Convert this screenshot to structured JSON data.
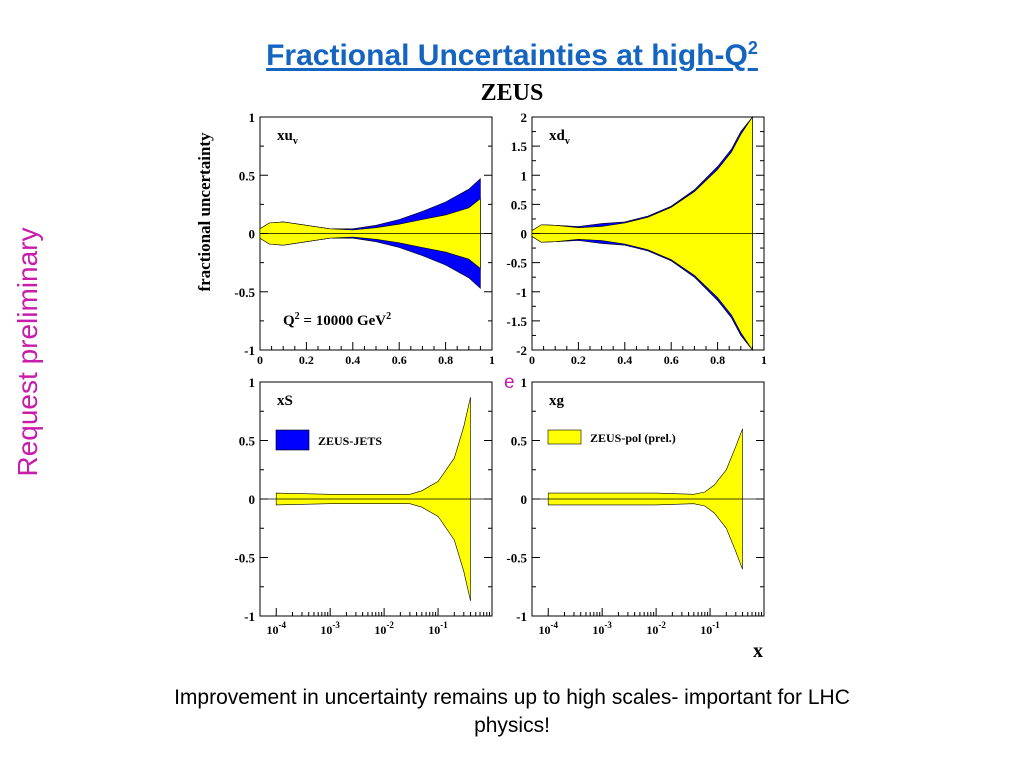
{
  "slide": {
    "title": "Fractional Uncertainties at high-Q",
    "title_superscript": "2",
    "zeus_label": "ZEUS",
    "side_note": "Request preliminary",
    "stray_char": "e",
    "caption_line1": "Improvement in uncertainty remains up to high scales- important for LHC",
    "caption_line2": "physics!",
    "x_axis_common_label": "x",
    "y_axis_common_label": "fractional uncertainty"
  },
  "colors": {
    "title": "#1565c0",
    "side_note": "#c81cab",
    "zeus_pol_band": "#ffff00",
    "zeus_jets_band": "#0000ff",
    "outline": "#000000"
  },
  "chart_data": [
    {
      "type": "area",
      "panel_label": "xu",
      "panel_label_sub": "v",
      "annotation": "Q",
      "annotation_parts": [
        "Q",
        "2",
        " = 10000 GeV",
        "2"
      ],
      "x_scale": "linear",
      "xlim": [
        0,
        1
      ],
      "ylim": [
        -1,
        1
      ],
      "x_ticks": [
        "0",
        "0.2",
        "0.4",
        "0.6",
        "0.8",
        "1"
      ],
      "y_ticks": [
        "-1",
        "-0.5",
        "0",
        "0.5",
        "1"
      ],
      "x": [
        0.0,
        0.04,
        0.1,
        0.2,
        0.3,
        0.4,
        0.5,
        0.6,
        0.7,
        0.8,
        0.9,
        0.95
      ],
      "series": [
        {
          "name": "ZEUS-JETS",
          "upper": [
            0.04,
            0.09,
            0.1,
            0.07,
            0.04,
            0.04,
            0.07,
            0.12,
            0.19,
            0.27,
            0.38,
            0.47
          ],
          "lower": [
            -0.04,
            -0.09,
            -0.1,
            -0.07,
            -0.04,
            -0.04,
            -0.07,
            -0.12,
            -0.19,
            -0.27,
            -0.38,
            -0.47
          ]
        },
        {
          "name": "ZEUS-pol (prel.)",
          "upper": [
            0.04,
            0.09,
            0.1,
            0.07,
            0.04,
            0.03,
            0.05,
            0.08,
            0.12,
            0.16,
            0.22,
            0.3
          ],
          "lower": [
            -0.04,
            -0.09,
            -0.1,
            -0.07,
            -0.04,
            -0.03,
            -0.05,
            -0.08,
            -0.12,
            -0.16,
            -0.22,
            -0.3
          ]
        }
      ]
    },
    {
      "type": "area",
      "panel_label": "xd",
      "panel_label_sub": "v",
      "x_scale": "linear",
      "xlim": [
        0,
        1
      ],
      "ylim": [
        -2,
        2
      ],
      "x_ticks": [
        "0",
        "0.2",
        "0.4",
        "0.6",
        "0.8",
        "1"
      ],
      "y_ticks": [
        "-2",
        "-1.5",
        "-1",
        "-0.5",
        "0",
        "0.5",
        "1",
        "1.5",
        "2"
      ],
      "x": [
        0.0,
        0.04,
        0.1,
        0.2,
        0.3,
        0.4,
        0.5,
        0.6,
        0.7,
        0.8,
        0.86,
        0.9,
        0.95
      ],
      "series": [
        {
          "name": "ZEUS-JETS",
          "upper": [
            0.05,
            0.15,
            0.14,
            0.12,
            0.17,
            0.2,
            0.3,
            0.47,
            0.75,
            1.15,
            1.45,
            1.75,
            2.0
          ],
          "lower": [
            -0.05,
            -0.15,
            -0.14,
            -0.12,
            -0.17,
            -0.2,
            -0.3,
            -0.47,
            -0.75,
            -1.15,
            -1.45,
            -1.75,
            -2.0
          ]
        },
        {
          "name": "ZEUS-pol (prel.)",
          "upper": [
            0.05,
            0.15,
            0.14,
            0.1,
            0.12,
            0.18,
            0.28,
            0.45,
            0.72,
            1.1,
            1.4,
            1.7,
            2.0
          ],
          "lower": [
            -0.05,
            -0.15,
            -0.14,
            -0.1,
            -0.12,
            -0.18,
            -0.28,
            -0.45,
            -0.72,
            -1.1,
            -1.4,
            -1.7,
            -2.0
          ]
        }
      ]
    },
    {
      "type": "area",
      "panel_label": "xS",
      "legend_label": "ZEUS-JETS",
      "x_scale": "log",
      "xlim": [
        5e-05,
        1
      ],
      "ylim": [
        -1,
        1
      ],
      "x_ticks": [
        "10-4",
        "10-3",
        "10-2",
        "10-1"
      ],
      "y_ticks": [
        "-1",
        "-0.5",
        "0",
        "0.5",
        "1"
      ],
      "x": [
        0.0001,
        0.001,
        0.01,
        0.03,
        0.05,
        0.1,
        0.2,
        0.3,
        0.4
      ],
      "series": [
        {
          "name": "ZEUS-pol (prel.)",
          "upper": [
            0.05,
            0.04,
            0.04,
            0.04,
            0.07,
            0.15,
            0.35,
            0.62,
            0.87
          ],
          "lower": [
            -0.05,
            -0.04,
            -0.04,
            -0.04,
            -0.07,
            -0.15,
            -0.35,
            -0.62,
            -0.87
          ]
        }
      ]
    },
    {
      "type": "area",
      "panel_label": "xg",
      "legend_label": "ZEUS-pol (prel.)",
      "x_scale": "log",
      "xlim": [
        5e-05,
        1
      ],
      "ylim": [
        -1,
        1
      ],
      "x_ticks": [
        "10-4",
        "10-3",
        "10-2",
        "10-1"
      ],
      "y_ticks": [
        "-1",
        "-0.5",
        "0",
        "0.5",
        "1"
      ],
      "x": [
        0.0001,
        0.001,
        0.01,
        0.05,
        0.08,
        0.12,
        0.2,
        0.3,
        0.4
      ],
      "series": [
        {
          "name": "ZEUS-pol (prel.)",
          "upper": [
            0.05,
            0.05,
            0.05,
            0.04,
            0.06,
            0.12,
            0.25,
            0.45,
            0.6
          ],
          "lower": [
            -0.05,
            -0.05,
            -0.05,
            -0.04,
            -0.06,
            -0.12,
            -0.25,
            -0.45,
            -0.6
          ]
        }
      ]
    }
  ]
}
